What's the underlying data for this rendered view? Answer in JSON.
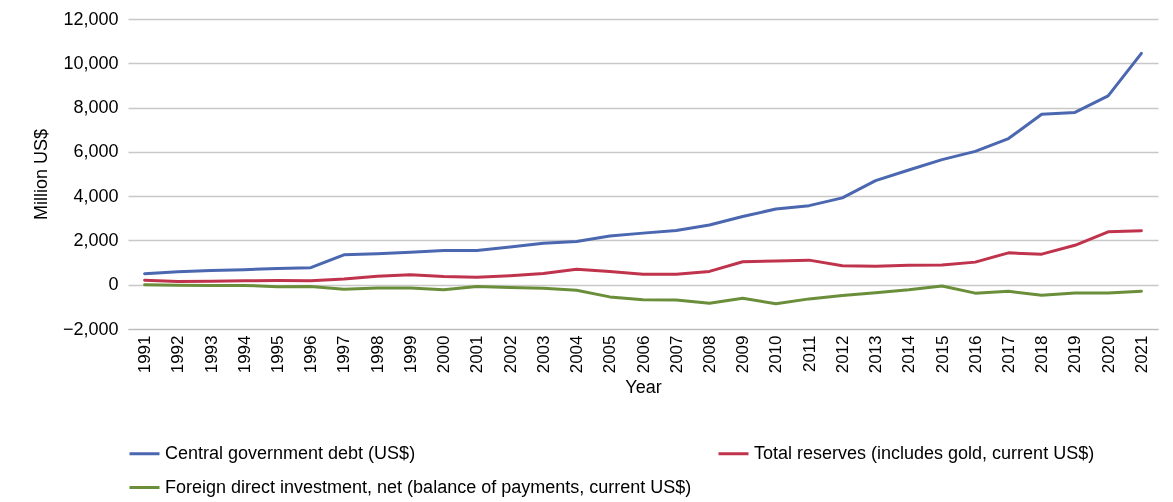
{
  "chart_data": {
    "type": "line",
    "xlabel": "Year",
    "ylabel": "Million US$",
    "categories": [
      "1991",
      "1992",
      "1993",
      "1994",
      "1995",
      "1996",
      "1997",
      "1998",
      "1999",
      "2000",
      "2001",
      "2002",
      "2003",
      "2004",
      "2005",
      "2006",
      "2007",
      "2008",
      "2009",
      "2010",
      "2011",
      "2012",
      "2013",
      "2014",
      "2015",
      "2016",
      "2017",
      "2018",
      "2019",
      "2020",
      "2021"
    ],
    "series": [
      {
        "name": "Central government debt (US$)",
        "color": "#4a67b0",
        "values": [
          500,
          580,
          640,
          680,
          730,
          770,
          1350,
          1400,
          1470,
          1540,
          1540,
          1700,
          1870,
          1950,
          2200,
          2330,
          2450,
          2700,
          3080,
          3420,
          3570,
          3920,
          4700,
          5180,
          5650,
          6020,
          6600,
          7700,
          7780,
          8530,
          10450
        ]
      },
      {
        "name": "Total reserves (includes gold, current US$)",
        "color": "#c0334d",
        "values": [
          200,
          150,
          160,
          180,
          190,
          180,
          260,
          380,
          450,
          370,
          340,
          410,
          510,
          700,
          600,
          470,
          470,
          600,
          1040,
          1070,
          1110,
          860,
          830,
          880,
          890,
          1020,
          1440,
          1380,
          1780,
          2390,
          2440
        ]
      },
      {
        "name": "Foreign direct investment, net (balance of payments, current US$)",
        "color": "#6b8e3a",
        "values": [
          0,
          -20,
          -40,
          -30,
          -90,
          -80,
          -200,
          -150,
          -150,
          -230,
          -80,
          -130,
          -160,
          -250,
          -550,
          -680,
          -690,
          -840,
          -610,
          -860,
          -640,
          -490,
          -360,
          -230,
          -60,
          -380,
          -300,
          -480,
          -370,
          -370,
          -290
        ]
      }
    ],
    "ylim": [
      -2000,
      12000
    ],
    "yticks": [
      {
        "value": -2000,
        "label": "−2,000"
      },
      0,
      {
        "value": 2000,
        "label": "2,000"
      },
      {
        "value": 4000,
        "label": "4,000"
      },
      {
        "value": 6000,
        "label": "6,000"
      },
      {
        "value": 8000,
        "label": "8,000"
      },
      {
        "value": 10000,
        "label": "10,000"
      },
      {
        "value": 12000,
        "label": "12,000"
      }
    ],
    "grid": "y",
    "legend": "bottom",
    "line_style": "solid"
  }
}
